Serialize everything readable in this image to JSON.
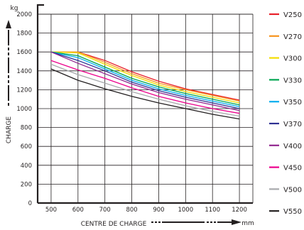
{
  "chart_data": {
    "type": "line",
    "title": "",
    "xlabel": "CENTRE DE CHARGE",
    "xunit": "mm",
    "ylabel": "CHARGE",
    "yunit": "kg",
    "xlim": [
      450,
      1250
    ],
    "ylim": [
      0,
      2000
    ],
    "x_ticks": [
      500,
      600,
      700,
      800,
      900,
      1000,
      1100,
      1200
    ],
    "y_ticks": [
      0,
      200,
      400,
      600,
      800,
      1000,
      1200,
      1400,
      1600,
      1800,
      2000
    ],
    "grid": true,
    "legend_position": "right",
    "x": [
      500,
      600,
      700,
      800,
      900,
      1000,
      1100,
      1200
    ],
    "series": [
      {
        "name": "V250",
        "color": "#e8202a",
        "values": [
          1600,
          1600,
          1510,
          1390,
          1290,
          1210,
          1150,
          1090
        ]
      },
      {
        "name": "V270",
        "color": "#f7941d",
        "values": [
          1600,
          1600,
          1490,
          1370,
          1270,
          1200,
          1140,
          1080
        ]
      },
      {
        "name": "V300",
        "color": "#f4dd00",
        "values": [
          1600,
          1590,
          1470,
          1350,
          1250,
          1180,
          1120,
          1060
        ]
      },
      {
        "name": "V330",
        "color": "#00a551",
        "values": [
          1600,
          1560,
          1440,
          1320,
          1230,
          1160,
          1100,
          1040
        ]
      },
      {
        "name": "V350",
        "color": "#00aeef",
        "values": [
          1600,
          1540,
          1420,
          1300,
          1210,
          1140,
          1080,
          1020
        ]
      },
      {
        "name": "V370",
        "color": "#2e3192",
        "values": [
          1600,
          1510,
          1400,
          1280,
          1190,
          1120,
          1060,
          1000
        ]
      },
      {
        "name": "V400",
        "color": "#92278f",
        "values": [
          1600,
          1480,
          1370,
          1260,
          1170,
          1100,
          1040,
          980
        ]
      },
      {
        "name": "V450",
        "color": "#ec008c",
        "values": [
          1510,
          1410,
          1320,
          1220,
          1130,
          1060,
          1000,
          950
        ]
      },
      {
        "name": "V500",
        "color": "#a7a9ac",
        "values": [
          1470,
          1360,
          1270,
          1180,
          1100,
          1030,
          970,
          920
        ]
      },
      {
        "name": "V550",
        "color": "#231f20",
        "values": [
          1420,
          1300,
          1210,
          1130,
          1060,
          1000,
          940,
          890
        ]
      }
    ]
  }
}
